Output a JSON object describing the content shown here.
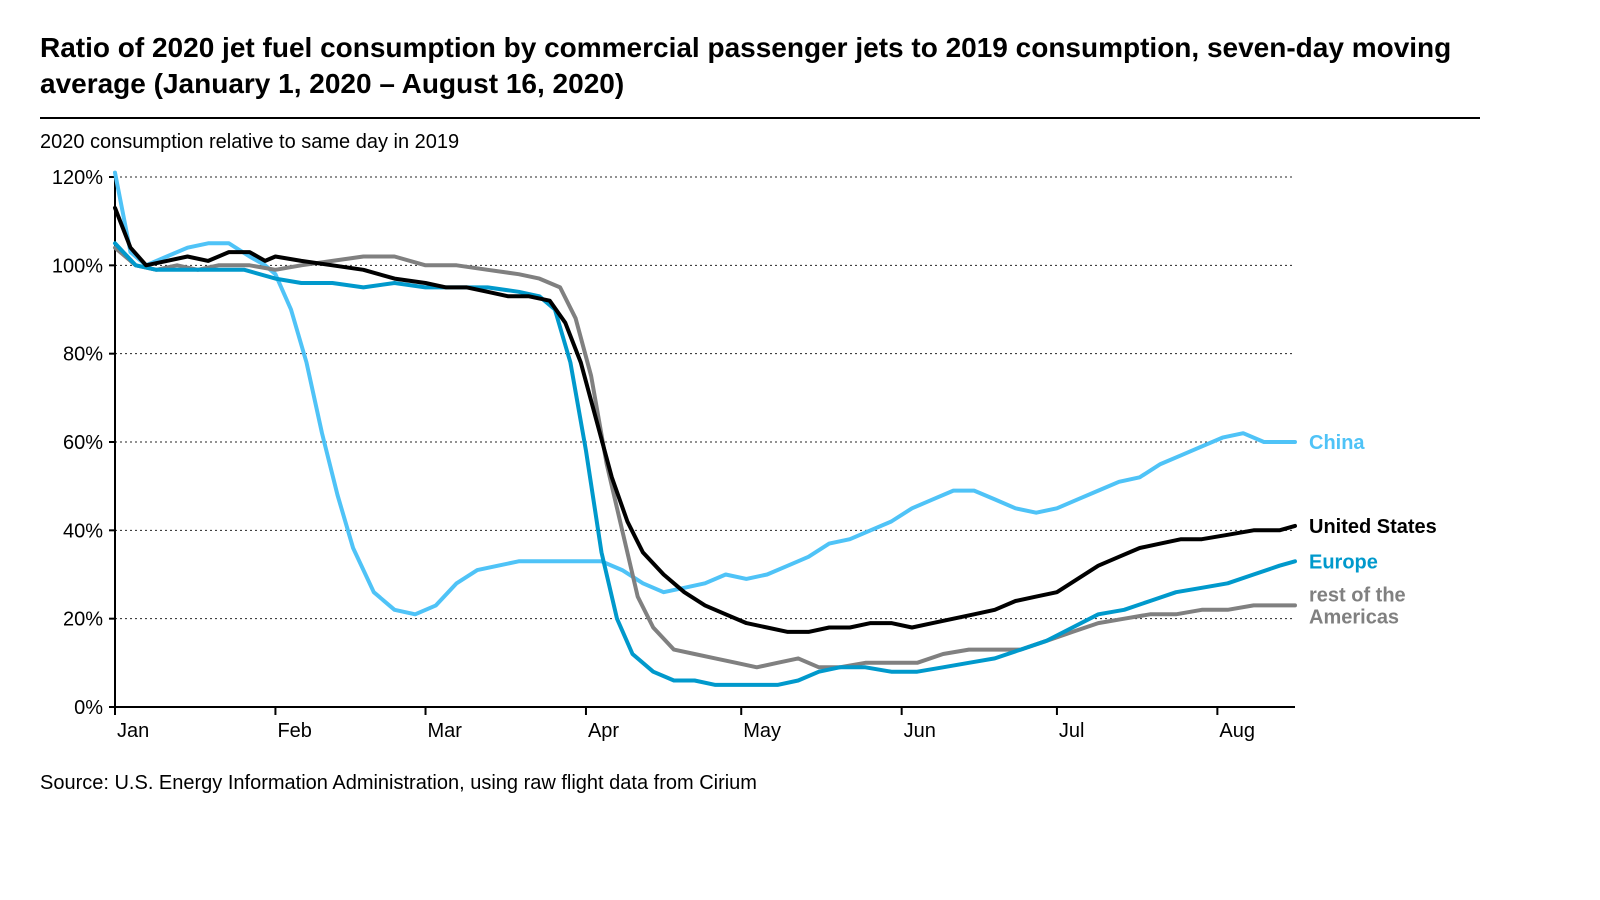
{
  "title": "Ratio of 2020 jet fuel consumption by commercial passenger jets to 2019 consumption, seven-day moving average (January 1, 2020 – August 16, 2020)",
  "subtitle": "2020 consumption relative to same day in 2019",
  "source": "Source: U.S. Energy Information Administration, using raw flight data from Cirium",
  "chart": {
    "type": "line",
    "background_color": "#ffffff",
    "grid_color": "#000000",
    "axis_color": "#000000",
    "font_family": "Arial",
    "title_fontsize": 28,
    "label_fontsize": 20,
    "line_width": 4,
    "ylim": [
      0,
      120
    ],
    "ytick_step": 20,
    "ytick_suffix": "%",
    "xlim": [
      0,
      228
    ],
    "x_categories": [
      "Jan",
      "Feb",
      "Mar",
      "Apr",
      "May",
      "Jun",
      "Jul",
      "Aug"
    ],
    "x_category_days": [
      0,
      31,
      60,
      91,
      121,
      152,
      182,
      213
    ],
    "series": [
      {
        "name": "China",
        "label": "China",
        "color": "#4fc3f7",
        "label_color": "#4fc3f7",
        "data": [
          [
            0,
            121
          ],
          [
            3,
            103
          ],
          [
            6,
            100
          ],
          [
            10,
            102
          ],
          [
            14,
            104
          ],
          [
            18,
            105
          ],
          [
            22,
            105
          ],
          [
            26,
            102
          ],
          [
            29,
            100
          ],
          [
            31,
            98
          ],
          [
            34,
            90
          ],
          [
            37,
            78
          ],
          [
            40,
            62
          ],
          [
            43,
            48
          ],
          [
            46,
            36
          ],
          [
            50,
            26
          ],
          [
            54,
            22
          ],
          [
            58,
            21
          ],
          [
            62,
            23
          ],
          [
            66,
            28
          ],
          [
            70,
            31
          ],
          [
            74,
            32
          ],
          [
            78,
            33
          ],
          [
            82,
            33
          ],
          [
            86,
            33
          ],
          [
            90,
            33
          ],
          [
            94,
            33
          ],
          [
            98,
            31
          ],
          [
            102,
            28
          ],
          [
            106,
            26
          ],
          [
            110,
            27
          ],
          [
            114,
            28
          ],
          [
            118,
            30
          ],
          [
            122,
            29
          ],
          [
            126,
            30
          ],
          [
            130,
            32
          ],
          [
            134,
            34
          ],
          [
            138,
            37
          ],
          [
            142,
            38
          ],
          [
            146,
            40
          ],
          [
            150,
            42
          ],
          [
            154,
            45
          ],
          [
            158,
            47
          ],
          [
            162,
            49
          ],
          [
            166,
            49
          ],
          [
            170,
            47
          ],
          [
            174,
            45
          ],
          [
            178,
            44
          ],
          [
            182,
            45
          ],
          [
            186,
            47
          ],
          [
            190,
            49
          ],
          [
            194,
            51
          ],
          [
            198,
            52
          ],
          [
            202,
            55
          ],
          [
            206,
            57
          ],
          [
            210,
            59
          ],
          [
            214,
            61
          ],
          [
            218,
            62
          ],
          [
            222,
            60
          ],
          [
            226,
            60
          ],
          [
            228,
            60
          ]
        ]
      },
      {
        "name": "rest_of_americas",
        "label": "rest of the\nAmericas",
        "color": "#808080",
        "label_color": "#808080",
        "data": [
          [
            0,
            104
          ],
          [
            4,
            100
          ],
          [
            8,
            99
          ],
          [
            12,
            100
          ],
          [
            16,
            99
          ],
          [
            20,
            100
          ],
          [
            26,
            100
          ],
          [
            31,
            99
          ],
          [
            36,
            100
          ],
          [
            42,
            101
          ],
          [
            48,
            102
          ],
          [
            54,
            102
          ],
          [
            60,
            100
          ],
          [
            66,
            100
          ],
          [
            72,
            99
          ],
          [
            78,
            98
          ],
          [
            82,
            97
          ],
          [
            86,
            95
          ],
          [
            89,
            88
          ],
          [
            92,
            75
          ],
          [
            95,
            55
          ],
          [
            98,
            40
          ],
          [
            101,
            25
          ],
          [
            104,
            18
          ],
          [
            108,
            13
          ],
          [
            112,
            12
          ],
          [
            116,
            11
          ],
          [
            120,
            10
          ],
          [
            124,
            9
          ],
          [
            128,
            10
          ],
          [
            132,
            11
          ],
          [
            136,
            9
          ],
          [
            140,
            9
          ],
          [
            145,
            10
          ],
          [
            150,
            10
          ],
          [
            155,
            10
          ],
          [
            160,
            12
          ],
          [
            165,
            13
          ],
          [
            170,
            13
          ],
          [
            175,
            13
          ],
          [
            180,
            15
          ],
          [
            185,
            17
          ],
          [
            190,
            19
          ],
          [
            195,
            20
          ],
          [
            200,
            21
          ],
          [
            205,
            21
          ],
          [
            210,
            22
          ],
          [
            215,
            22
          ],
          [
            220,
            23
          ],
          [
            225,
            23
          ],
          [
            228,
            23
          ]
        ]
      },
      {
        "name": "Europe",
        "label": "Europe",
        "color": "#0099cc",
        "label_color": "#0099cc",
        "data": [
          [
            0,
            105
          ],
          [
            4,
            100
          ],
          [
            8,
            99
          ],
          [
            12,
            99
          ],
          [
            16,
            99
          ],
          [
            20,
            99
          ],
          [
            25,
            99
          ],
          [
            31,
            97
          ],
          [
            36,
            96
          ],
          [
            42,
            96
          ],
          [
            48,
            95
          ],
          [
            54,
            96
          ],
          [
            60,
            95
          ],
          [
            66,
            95
          ],
          [
            72,
            95
          ],
          [
            78,
            94
          ],
          [
            82,
            93
          ],
          [
            85,
            90
          ],
          [
            88,
            78
          ],
          [
            91,
            58
          ],
          [
            94,
            35
          ],
          [
            97,
            20
          ],
          [
            100,
            12
          ],
          [
            104,
            8
          ],
          [
            108,
            6
          ],
          [
            112,
            6
          ],
          [
            116,
            5
          ],
          [
            120,
            5
          ],
          [
            124,
            5
          ],
          [
            128,
            5
          ],
          [
            132,
            6
          ],
          [
            136,
            8
          ],
          [
            140,
            9
          ],
          [
            145,
            9
          ],
          [
            150,
            8
          ],
          [
            155,
            8
          ],
          [
            160,
            9
          ],
          [
            165,
            10
          ],
          [
            170,
            11
          ],
          [
            175,
            13
          ],
          [
            180,
            15
          ],
          [
            185,
            18
          ],
          [
            190,
            21
          ],
          [
            195,
            22
          ],
          [
            200,
            24
          ],
          [
            205,
            26
          ],
          [
            210,
            27
          ],
          [
            215,
            28
          ],
          [
            220,
            30
          ],
          [
            225,
            32
          ],
          [
            228,
            33
          ]
        ]
      },
      {
        "name": "United States",
        "label": "United States",
        "color": "#000000",
        "label_color": "#000000",
        "data": [
          [
            0,
            113
          ],
          [
            3,
            104
          ],
          [
            6,
            100
          ],
          [
            10,
            101
          ],
          [
            14,
            102
          ],
          [
            18,
            101
          ],
          [
            22,
            103
          ],
          [
            26,
            103
          ],
          [
            29,
            101
          ],
          [
            31,
            102
          ],
          [
            36,
            101
          ],
          [
            42,
            100
          ],
          [
            48,
            99
          ],
          [
            54,
            97
          ],
          [
            60,
            96
          ],
          [
            64,
            95
          ],
          [
            68,
            95
          ],
          [
            72,
            94
          ],
          [
            76,
            93
          ],
          [
            80,
            93
          ],
          [
            84,
            92
          ],
          [
            87,
            87
          ],
          [
            90,
            78
          ],
          [
            93,
            65
          ],
          [
            96,
            52
          ],
          [
            99,
            42
          ],
          [
            102,
            35
          ],
          [
            106,
            30
          ],
          [
            110,
            26
          ],
          [
            114,
            23
          ],
          [
            118,
            21
          ],
          [
            122,
            19
          ],
          [
            126,
            18
          ],
          [
            130,
            17
          ],
          [
            134,
            17
          ],
          [
            138,
            18
          ],
          [
            142,
            18
          ],
          [
            146,
            19
          ],
          [
            150,
            19
          ],
          [
            154,
            18
          ],
          [
            158,
            19
          ],
          [
            162,
            20
          ],
          [
            166,
            21
          ],
          [
            170,
            22
          ],
          [
            174,
            24
          ],
          [
            178,
            25
          ],
          [
            182,
            26
          ],
          [
            186,
            29
          ],
          [
            190,
            32
          ],
          [
            194,
            34
          ],
          [
            198,
            36
          ],
          [
            202,
            37
          ],
          [
            206,
            38
          ],
          [
            210,
            38
          ],
          [
            215,
            39
          ],
          [
            220,
            40
          ],
          [
            225,
            40
          ],
          [
            228,
            41
          ]
        ]
      }
    ],
    "legend": {
      "position": "right",
      "items": [
        {
          "series": "China",
          "y_end": 60
        },
        {
          "series": "United States",
          "y_end": 41
        },
        {
          "series": "Europe",
          "y_end": 33
        },
        {
          "series": "rest_of_americas",
          "y_end": 23
        }
      ]
    }
  }
}
